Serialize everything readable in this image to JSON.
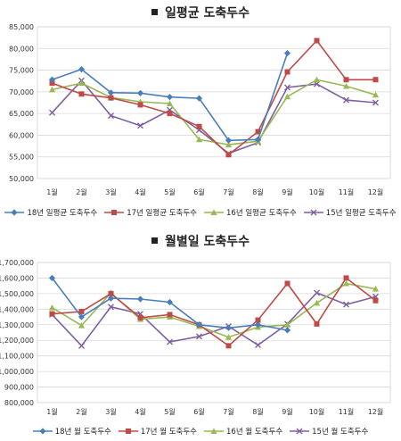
{
  "chart_data": [
    {
      "type": "line",
      "title": "일평균 도축두수",
      "categories": [
        "1월",
        "2월",
        "3월",
        "4월",
        "5월",
        "6월",
        "7월",
        "8월",
        "9월",
        "10월",
        "11월",
        "12월"
      ],
      "ylim": [
        50000,
        85000
      ],
      "yticks": [
        "50,000",
        "55,000",
        "60,000",
        "65,000",
        "70,000",
        "75,000",
        "80,000",
        "85,000"
      ],
      "ytick_values": [
        50000,
        55000,
        60000,
        65000,
        70000,
        75000,
        80000,
        85000
      ],
      "grid": true,
      "legend": "bottom",
      "series": [
        {
          "name": "18년 일평균 도축두수",
          "color": "#4a7ebb",
          "marker": "diamond",
          "values": [
            72800,
            75200,
            69800,
            69700,
            68800,
            68500,
            58800,
            59000,
            78900,
            null,
            null,
            null
          ]
        },
        {
          "name": "17년 일평균 도축두수",
          "color": "#be4b48",
          "marker": "square",
          "values": [
            72000,
            69500,
            68600,
            67000,
            65000,
            62000,
            55500,
            60800,
            74600,
            81800,
            72800,
            72800
          ]
        },
        {
          "name": "16년 일평균 도축두수",
          "color": "#98b954",
          "marker": "triangle",
          "values": [
            70500,
            72000,
            68700,
            67700,
            67300,
            59000,
            57800,
            58600,
            68900,
            72800,
            71300,
            69300
          ]
        },
        {
          "name": "15년 일평균 도축두수",
          "color": "#7d60a0",
          "marker": "x",
          "values": [
            65200,
            72600,
            64500,
            62200,
            65800,
            61200,
            55800,
            58300,
            71000,
            71800,
            68100,
            67500
          ]
        }
      ]
    },
    {
      "type": "line",
      "title": "월별일 도축두수",
      "categories": [
        "1월",
        "2월",
        "3월",
        "4월",
        "5월",
        "6월",
        "7월",
        "8월",
        "9월",
        "10월",
        "11월",
        "12월"
      ],
      "ylim": [
        800000,
        1700000
      ],
      "yticks": [
        "800,000",
        "900,000",
        "1,000,000",
        "1,100,000",
        "1,200,000",
        "1,300,000",
        "1,400,000",
        "1,500,000",
        "1,600,000",
        "1,700,000"
      ],
      "ytick_values": [
        800000,
        900000,
        1000000,
        1100000,
        1200000,
        1300000,
        1400000,
        1500000,
        1600000,
        1700000
      ],
      "grid": true,
      "legend": "bottom",
      "series": [
        {
          "name": "18년 월 도축두수",
          "color": "#4a7ebb",
          "marker": "diamond",
          "values": [
            1600000,
            1350000,
            1470000,
            1465000,
            1445000,
            1300000,
            1280000,
            1300000,
            1265000,
            null,
            null,
            null
          ]
        },
        {
          "name": "17년 월 도축두수",
          "color": "#be4b48",
          "marker": "square",
          "values": [
            1370000,
            1385000,
            1500000,
            1345000,
            1365000,
            1300000,
            1165000,
            1330000,
            1565000,
            1305000,
            1600000,
            1455000
          ]
        },
        {
          "name": "16년 월 도축두수",
          "color": "#98b954",
          "marker": "triangle",
          "values": [
            1410000,
            1295000,
            1505000,
            1335000,
            1350000,
            1290000,
            1220000,
            1285000,
            1300000,
            1440000,
            1565000,
            1530000
          ]
        },
        {
          "name": "15년 월 도축두수",
          "color": "#7d60a0",
          "marker": "x",
          "values": [
            1365000,
            1165000,
            1415000,
            1370000,
            1190000,
            1225000,
            1290000,
            1170000,
            1305000,
            1505000,
            1430000,
            1480000
          ]
        }
      ]
    }
  ]
}
